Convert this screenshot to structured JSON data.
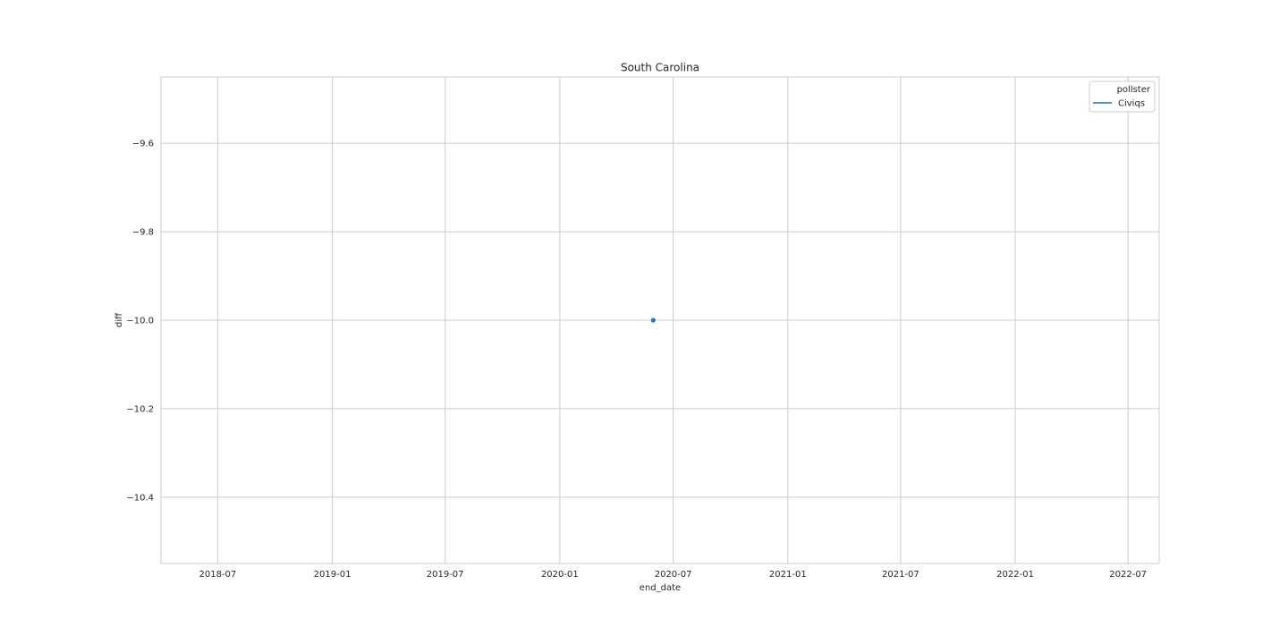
{
  "chart_data": {
    "type": "line",
    "title": "South Carolina",
    "xlabel": "end_date",
    "ylabel": "diff",
    "x_axis_type": "date",
    "xlim": [
      "2018-04-01",
      "2022-08-20"
    ],
    "ylim": [
      -10.55,
      -9.45
    ],
    "x_ticks": [
      "2018-07",
      "2019-01",
      "2019-07",
      "2020-01",
      "2020-07",
      "2021-01",
      "2021-07",
      "2022-01",
      "2022-07"
    ],
    "y_ticks": [
      -9.6,
      -9.8,
      -10.0,
      -10.2,
      -10.4
    ],
    "y_tick_labels": [
      "−9.6",
      "−9.8",
      "−10.0",
      "−10.2",
      "−10.4"
    ],
    "grid": true,
    "legend": {
      "title": "pollster",
      "position": "top-right"
    },
    "series": [
      {
        "name": "Civiqs",
        "color": "#1f77b4",
        "points": [
          {
            "x": "2020-05-30",
            "y": -10.0
          }
        ]
      }
    ]
  }
}
